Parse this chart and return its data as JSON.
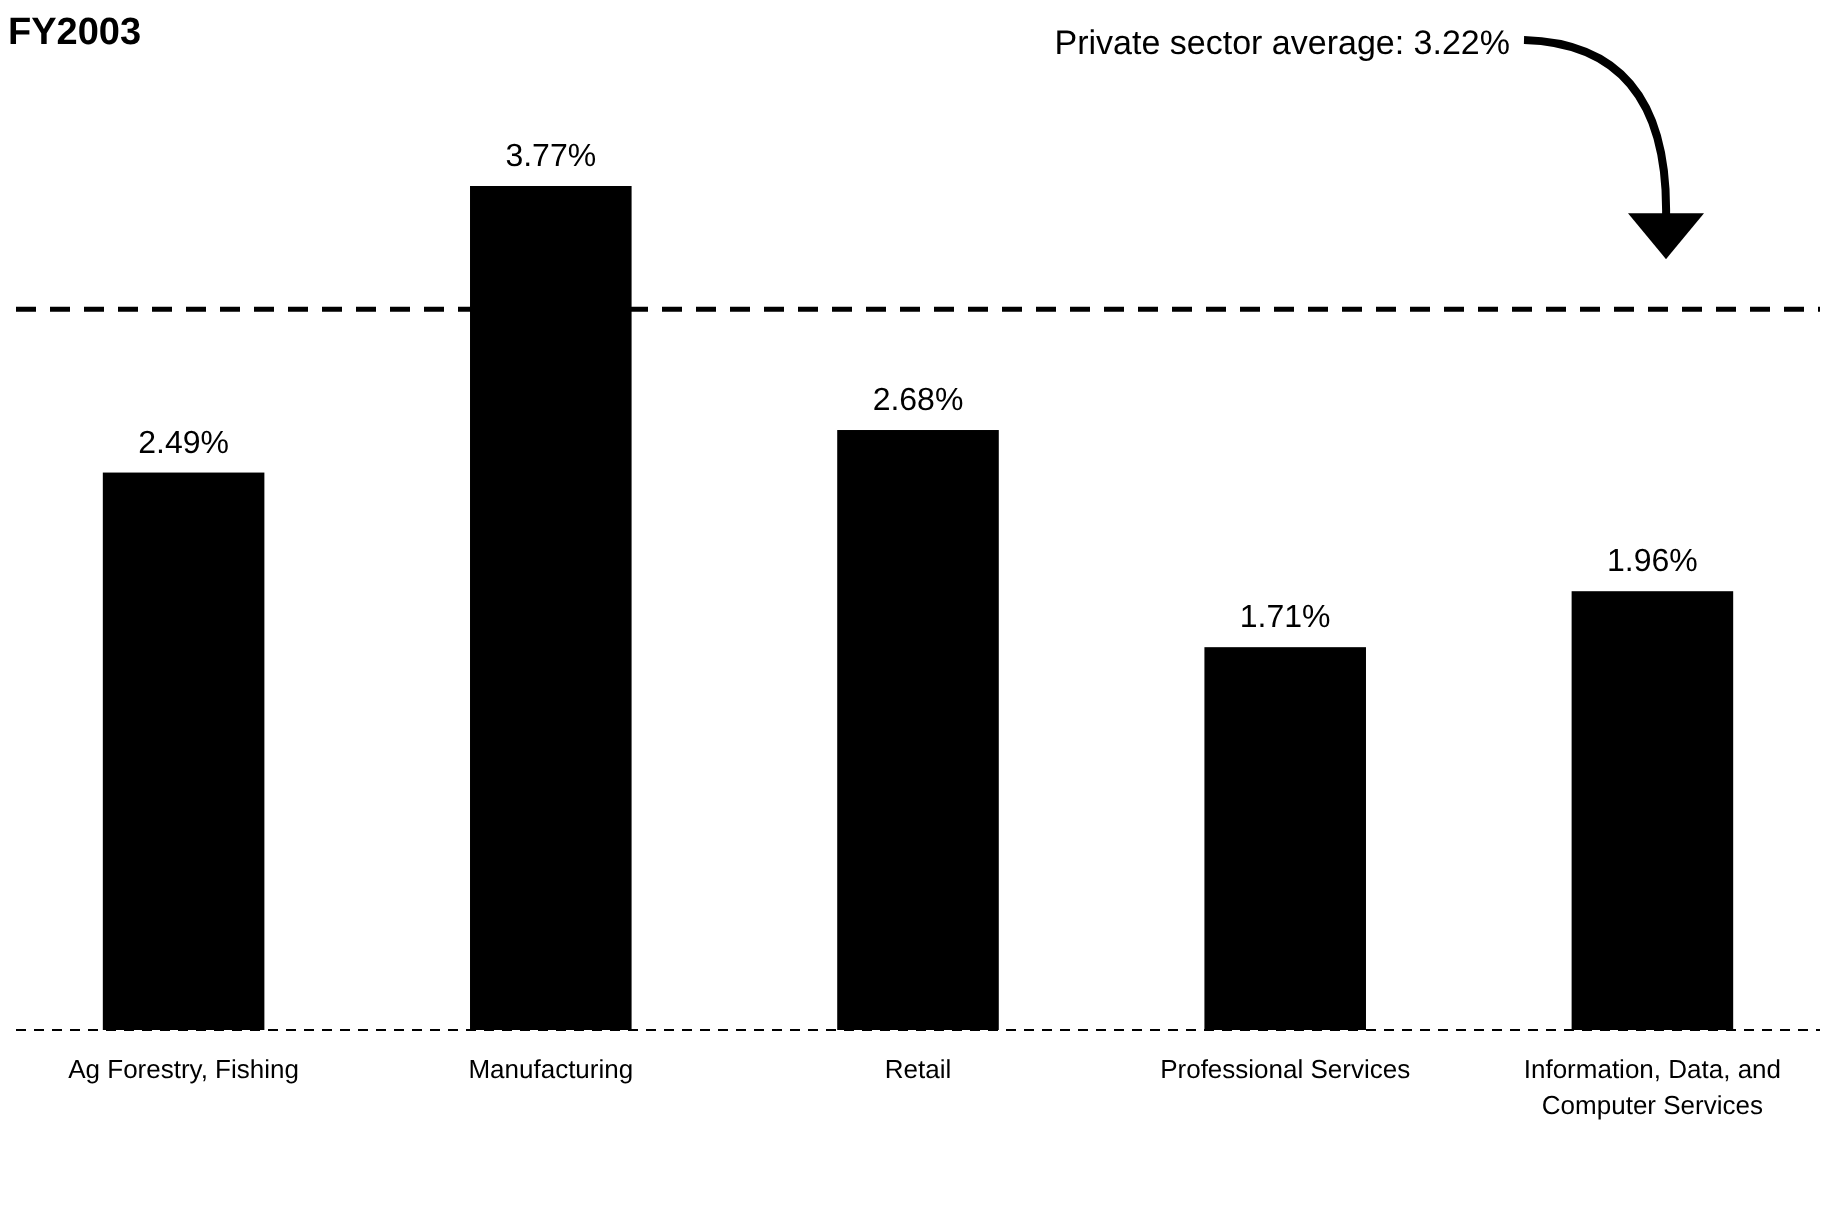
{
  "chart_data": {
    "type": "bar",
    "title": "FY2003",
    "categories": [
      "Ag Forestry, Fishing",
      "Manufacturing",
      "Retail",
      "Professional Services",
      "Information, Data, and Computer Services"
    ],
    "values": [
      2.49,
      3.77,
      2.68,
      1.71,
      1.96
    ],
    "value_labels": [
      "2.49%",
      "3.77%",
      "2.68%",
      "1.71%",
      "1.96%"
    ],
    "color": "#000000",
    "ref_lines": [
      {
        "axis": "y",
        "value": 3.22,
        "label": "Private sector average: 3.22%",
        "line_style": "dashed",
        "color": "#000000"
      }
    ]
  }
}
